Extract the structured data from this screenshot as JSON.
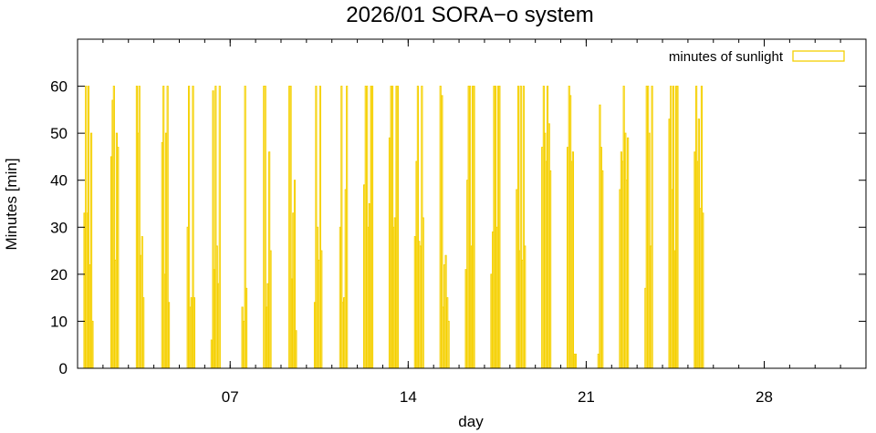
{
  "chart_data": {
    "type": "bar",
    "title": "2026/01 SORA−o system",
    "xlabel": "day",
    "ylabel": "Minutes [min]",
    "xlim": [
      1,
      32
    ],
    "ylim": [
      0,
      70
    ],
    "x_ticks": [
      {
        "value": 7,
        "label": "07"
      },
      {
        "value": 14,
        "label": "14"
      },
      {
        "value": 21,
        "label": "21"
      },
      {
        "value": 28,
        "label": "28"
      }
    ],
    "y_ticks": [
      0,
      10,
      20,
      30,
      40,
      50,
      60
    ],
    "grid": false,
    "legend_position": "top-right",
    "bar_color": "#f5d000",
    "series": [
      {
        "name": "minutes of sunlight",
        "x": [
          1.27,
          1.33,
          1.38,
          1.43,
          1.48,
          1.54,
          1.59,
          2.33,
          2.38,
          2.43,
          2.48,
          2.54,
          2.59,
          3.33,
          3.38,
          3.43,
          3.48,
          3.54,
          3.59,
          4.33,
          4.38,
          4.43,
          4.48,
          4.54,
          4.59,
          5.33,
          5.38,
          5.43,
          5.48,
          5.54,
          5.59,
          6.27,
          6.33,
          6.38,
          6.43,
          6.48,
          6.54,
          6.59,
          7.48,
          7.54,
          7.59,
          7.64,
          8.33,
          8.38,
          8.43,
          8.48,
          8.54,
          8.59,
          9.33,
          9.38,
          9.43,
          9.48,
          9.54,
          9.59,
          10.33,
          10.38,
          10.43,
          10.48,
          10.54,
          10.59,
          11.33,
          11.38,
          11.43,
          11.48,
          11.54,
          11.59,
          12.27,
          12.33,
          12.38,
          12.43,
          12.48,
          12.54,
          12.59,
          13.27,
          13.33,
          13.38,
          13.43,
          13.48,
          13.54,
          13.59,
          14.27,
          14.33,
          14.38,
          14.43,
          14.48,
          14.54,
          14.59,
          15.27,
          15.33,
          15.38,
          15.43,
          15.48,
          15.54,
          15.59,
          16.27,
          16.33,
          16.38,
          16.43,
          16.48,
          16.54,
          16.59,
          17.27,
          17.33,
          17.38,
          17.43,
          17.48,
          17.54,
          17.59,
          18.27,
          18.33,
          18.38,
          18.43,
          18.48,
          18.54,
          18.59,
          19.27,
          19.33,
          19.38,
          19.43,
          19.48,
          19.54,
          19.59,
          20.27,
          20.33,
          20.38,
          20.43,
          20.48,
          20.54,
          20.59,
          21.48,
          21.54,
          21.59,
          21.64,
          22.33,
          22.38,
          22.43,
          22.48,
          22.54,
          22.59,
          22.64,
          23.33,
          23.38,
          23.43,
          23.48,
          23.54,
          23.59,
          24.27,
          24.33,
          24.38,
          24.43,
          24.48,
          24.54,
          24.59,
          25.27,
          25.33,
          25.38,
          25.43,
          25.48,
          25.54,
          25.59
        ],
        "values": [
          33,
          60,
          33,
          60,
          22,
          50,
          10,
          45,
          57,
          60,
          23,
          50,
          47,
          60,
          50,
          60,
          24,
          28,
          15,
          48,
          60,
          20,
          50,
          60,
          14,
          30,
          60,
          13,
          15,
          60,
          15,
          6,
          59,
          21,
          60,
          26,
          18,
          60,
          13,
          10,
          60,
          17,
          60,
          60,
          13,
          18,
          46,
          25,
          60,
          60,
          19,
          33,
          40,
          8,
          14,
          60,
          30,
          23,
          60,
          25,
          30,
          60,
          14,
          15,
          38,
          60,
          39,
          60,
          60,
          30,
          35,
          60,
          60,
          49,
          60,
          60,
          30,
          32,
          60,
          60,
          28,
          44,
          60,
          27,
          26,
          60,
          32,
          60,
          58,
          13,
          22,
          24,
          15,
          10,
          21,
          40,
          60,
          60,
          26,
          60,
          60,
          20,
          29,
          60,
          60,
          30,
          60,
          60,
          38,
          60,
          25,
          60,
          23,
          60,
          26,
          47,
          60,
          50,
          44,
          60,
          52,
          42,
          47,
          60,
          58,
          44,
          46,
          3,
          3,
          3,
          56,
          47,
          42,
          38,
          46,
          44,
          60,
          50,
          40,
          49,
          17,
          60,
          60,
          50,
          26,
          60,
          53,
          60,
          38,
          60,
          25,
          60,
          60,
          46,
          60,
          44,
          53,
          34,
          60,
          33
        ]
      }
    ]
  }
}
